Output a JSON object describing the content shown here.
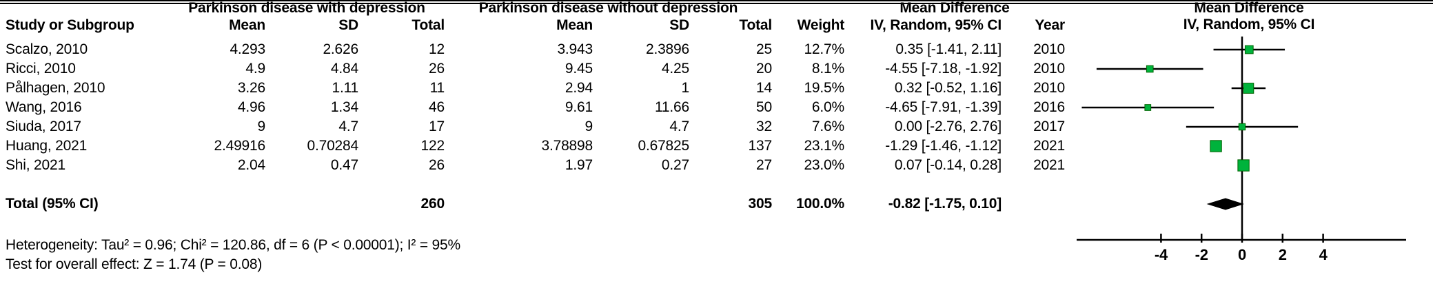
{
  "header": {
    "group1": "Parkinson disease with depression",
    "group2": "Parkinson disease without depression",
    "md": "Mean Difference",
    "study": "Study or Subgroup",
    "mean": "Mean",
    "sd": "SD",
    "total": "Total",
    "weight": "Weight",
    "ci_method": "IV, Random, 95% CI",
    "year": "Year"
  },
  "rows": [
    {
      "study": "Scalzo, 2010",
      "mean_e": "4.293",
      "sd_e": "2.626",
      "total_e": "12",
      "mean_c": "3.943",
      "sd_c": "2.3896",
      "total_c": "25",
      "weight": "12.7%",
      "ci": "0.35 [-1.41, 2.11]",
      "year": "2010"
    },
    {
      "study": "Ricci, 2010",
      "mean_e": "4.9",
      "sd_e": "4.84",
      "total_e": "26",
      "mean_c": "9.45",
      "sd_c": "4.25",
      "total_c": "20",
      "weight": "8.1%",
      "ci": "-4.55 [-7.18, -1.92]",
      "year": "2010"
    },
    {
      "study": "Pålhagen, 2010",
      "mean_e": "3.26",
      "sd_e": "1.11",
      "total_e": "11",
      "mean_c": "2.94",
      "sd_c": "1",
      "total_c": "14",
      "weight": "19.5%",
      "ci": "0.32 [-0.52, 1.16]",
      "year": "2010"
    },
    {
      "study": "Wang, 2016",
      "mean_e": "4.96",
      "sd_e": "1.34",
      "total_e": "46",
      "mean_c": "9.61",
      "sd_c": "11.66",
      "total_c": "50",
      "weight": "6.0%",
      "ci": "-4.65 [-7.91, -1.39]",
      "year": "2016"
    },
    {
      "study": "Siuda, 2017",
      "mean_e": "9",
      "sd_e": "4.7",
      "total_e": "17",
      "mean_c": "9",
      "sd_c": "4.7",
      "total_c": "32",
      "weight": "7.6%",
      "ci": "0.00 [-2.76, 2.76]",
      "year": "2017"
    },
    {
      "study": "Huang, 2021",
      "mean_e": "2.49916",
      "sd_e": "0.70284",
      "total_e": "122",
      "mean_c": "3.78898",
      "sd_c": "0.67825",
      "total_c": "137",
      "weight": "23.1%",
      "ci": "-1.29 [-1.46, -1.12]",
      "year": "2021"
    },
    {
      "study": "Shi, 2021",
      "mean_e": "2.04",
      "sd_e": "0.47",
      "total_e": "26",
      "mean_c": "1.97",
      "sd_c": "0.27",
      "total_c": "27",
      "weight": "23.0%",
      "ci": "0.07 [-0.14, 0.28]",
      "year": "2021"
    }
  ],
  "total_row": {
    "label": "Total (95% CI)",
    "total_e": "260",
    "total_c": "305",
    "weight": "100.0%",
    "ci": "-0.82 [-1.75, 0.10]"
  },
  "footers": {
    "heterogeneity": "Heterogeneity: Tau² = 0.96; Chi² = 120.86, df = 6 (P < 0.00001); I² = 95%",
    "overall_effect": "Test for overall effect: Z = 1.74 (P = 0.08)"
  },
  "chart_data": {
    "type": "scatter",
    "subtype": "forest-plot",
    "title": "Mean Difference",
    "effect_measure": "IV, Random, 95% CI",
    "studies": [
      {
        "name": "Scalzo, 2010",
        "estimate": 0.35,
        "ci_low": -1.41,
        "ci_high": 2.11,
        "weight_pct": 12.7,
        "year": 2010
      },
      {
        "name": "Ricci, 2010",
        "estimate": -4.55,
        "ci_low": -7.18,
        "ci_high": -1.92,
        "weight_pct": 8.1,
        "year": 2010
      },
      {
        "name": "Pålhagen, 2010",
        "estimate": 0.32,
        "ci_low": -0.52,
        "ci_high": 1.16,
        "weight_pct": 19.5,
        "year": 2010
      },
      {
        "name": "Wang, 2016",
        "estimate": -4.65,
        "ci_low": -7.91,
        "ci_high": -1.39,
        "weight_pct": 6.0,
        "year": 2016
      },
      {
        "name": "Siuda, 2017",
        "estimate": 0.0,
        "ci_low": -2.76,
        "ci_high": 2.76,
        "weight_pct": 7.6,
        "year": 2017
      },
      {
        "name": "Huang, 2021",
        "estimate": -1.29,
        "ci_low": -1.46,
        "ci_high": -1.12,
        "weight_pct": 23.1,
        "year": 2021
      },
      {
        "name": "Shi, 2021",
        "estimate": 0.07,
        "ci_low": -0.14,
        "ci_high": 0.28,
        "weight_pct": 23.0,
        "year": 2021
      }
    ],
    "total": {
      "name": "Total (95% CI)",
      "estimate": -0.82,
      "ci_low": -1.75,
      "ci_high": 0.1,
      "weight_pct": 100.0
    },
    "x_ticks": [
      -4,
      -2,
      0,
      2,
      4
    ],
    "xlim": [
      -8.2,
      8.1
    ],
    "grid": false,
    "annotations": [
      "Heterogeneity: Tau² = 0.96; Chi² = 120.86, df = 6 (P < 0.00001); I² = 95%",
      "Test for overall effect: Z = 1.74 (P = 0.08)"
    ],
    "colors": {
      "marker_fill": "#00b33c",
      "marker_stroke": "#006400",
      "line": "#000000",
      "diamond": "#000000"
    }
  }
}
